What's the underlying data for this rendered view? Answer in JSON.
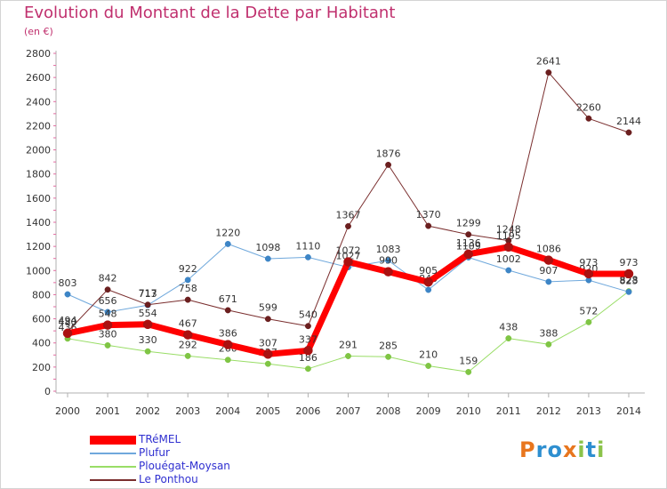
{
  "title": "Evolution du Montant de la Dette par Habitant",
  "subtitle": "(en €)",
  "logo": {
    "letters": [
      "P",
      "r",
      "o",
      "x",
      "i",
      "t",
      "i"
    ],
    "colors": [
      "#e8761e",
      "#2e8fd0",
      "#2e8fd0",
      "#e8761e",
      "#8bc34a",
      "#2e8fd0",
      "#8bc34a"
    ]
  },
  "chart_data": {
    "type": "line",
    "title": "Evolution du Montant de la Dette par Habitant",
    "ylabel": "(en €)",
    "x": [
      "2000",
      "2001",
      "2002",
      "2003",
      "2004",
      "2005",
      "2006",
      "2007",
      "2008",
      "2009",
      "2010",
      "2011",
      "2012",
      "2013",
      "2014"
    ],
    "ylim": [
      0,
      2800
    ],
    "yticks": [
      0,
      200,
      400,
      600,
      800,
      1000,
      1200,
      1400,
      1600,
      1800,
      2000,
      2200,
      2400,
      2600,
      2800
    ],
    "grid": false,
    "legend_position": "bottom-left",
    "series": [
      {
        "name": "Plouégat-Moysan",
        "color": "#99dd66",
        "marker": "#7fc544",
        "width": 1,
        "values": [
          436,
          380,
          330,
          292,
          260,
          227,
          186,
          291,
          285,
          210,
          159,
          438,
          388,
          572,
          828
        ],
        "labels": [
          "436",
          "380",
          "330",
          "292",
          "260",
          "227",
          "186",
          "291",
          "285",
          "210",
          "159",
          "438",
          "388",
          "572",
          "828"
        ]
      },
      {
        "name": "Plufur",
        "color": "#6fa8dc",
        "marker": "#3d85c6",
        "width": 1,
        "values": [
          803,
          656,
          713,
          922,
          1220,
          1098,
          1110,
          1027,
          1083,
          840,
          1109,
          1002,
          907,
          920,
          823
        ],
        "labels": [
          "803",
          "656",
          "713",
          "922",
          "1220",
          "1098",
          "1110",
          "1027",
          "1083",
          "840",
          "1109",
          "1002",
          "907",
          "920",
          "823"
        ]
      },
      {
        "name": "Le Ponthou",
        "color": "#7a2e2e",
        "marker": "#6b1f1f",
        "width": 1,
        "values": [
          494,
          842,
          717,
          758,
          671,
          599,
          540,
          1367,
          1876,
          1370,
          1299,
          1248,
          2641,
          2260,
          2144
        ],
        "labels": [
          "494",
          "842",
          "717",
          "758",
          "671",
          "599",
          "540",
          "1367",
          "1876",
          "1370",
          "1299",
          "1248",
          "2641",
          "2260",
          "2144"
        ]
      },
      {
        "name": "TRéMEL",
        "color": "#ff0000",
        "marker": "#aa1111",
        "width": 7,
        "values": [
          480,
          548,
          554,
          467,
          386,
          307,
          337,
          1072,
          990,
          905,
          1136,
          1195,
          1086,
          973,
          973
        ],
        "labels": [
          "480",
          "548",
          "554",
          "467",
          "386",
          "307",
          "337",
          "1072",
          "990",
          "905",
          "1136",
          "1195",
          "1086",
          "973",
          "973"
        ]
      }
    ]
  },
  "legend": [
    {
      "name": "TRéMEL",
      "color": "#ff0000",
      "width": 7
    },
    {
      "name": "Plufur",
      "color": "#6fa8dc",
      "width": 1
    },
    {
      "name": "Plouégat-Moysan",
      "color": "#99dd66",
      "width": 1
    },
    {
      "name": "Le Ponthou",
      "color": "#7a2e2e",
      "width": 1
    }
  ]
}
